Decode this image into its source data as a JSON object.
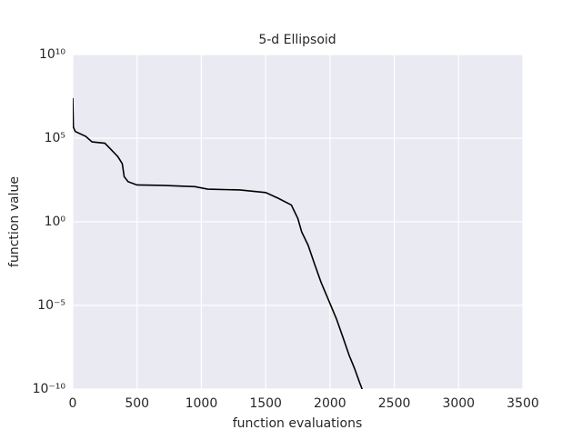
{
  "chart_data": {
    "type": "line",
    "title": "5-d Ellipsoid",
    "x_label": "function evaluations",
    "y_label": "function value",
    "log_y": true,
    "grid": true,
    "background": "#eaeaf2",
    "x": [
      0,
      5,
      20,
      100,
      150,
      250,
      300,
      350,
      385,
      400,
      430,
      500,
      700,
      950,
      1050,
      1300,
      1500,
      1600,
      1700,
      1750,
      1780,
      1830,
      1880,
      1930,
      1990,
      2050,
      2100,
      2150,
      2190,
      2230,
      2250
    ],
    "series": [
      {
        "color": "#000000",
        "values": [
          25000000.0,
          450000.0,
          250000.0,
          130000.0,
          60000.0,
          50000.0,
          20000.0,
          8000.0,
          3000.0,
          500,
          250,
          160,
          150,
          126,
          90,
          80,
          56,
          25,
          10,
          1.6,
          0.25,
          0.04,
          0.003,
          0.00025,
          2e-05,
          1.6e-06,
          1.3e-07,
          1e-08,
          1.8e-09,
          2.5e-10,
          1e-10
        ]
      }
    ],
    "xlim": [
      0,
      3500
    ],
    "xticks": [
      0,
      500,
      1000,
      1500,
      2000,
      2500,
      3000,
      3500
    ],
    "ylim": [
      1e-10,
      10000000000.0
    ],
    "yticks": [
      {
        "value": 1e-10,
        "label": "10⁻¹⁰"
      },
      {
        "value": 1e-05,
        "label": "10⁻⁵"
      },
      {
        "value": 1,
        "label": "10⁰"
      },
      {
        "value": 100000.0,
        "label": "10⁵"
      },
      {
        "value": 10000000000.0,
        "label": "10¹⁰"
      }
    ]
  }
}
